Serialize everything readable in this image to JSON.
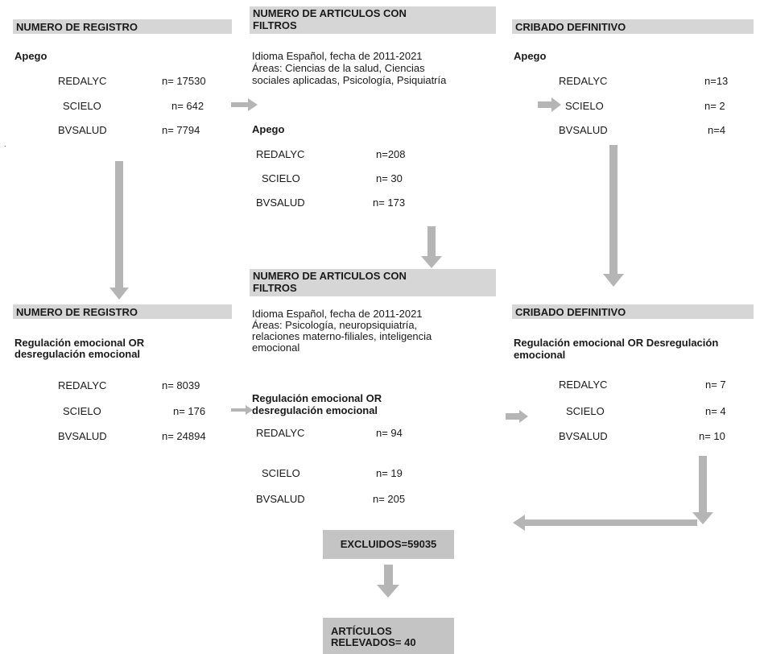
{
  "col1": {
    "block1": {
      "header": "NUMERO DE REGISTRO",
      "topic": "Apego",
      "rows": [
        {
          "db": "REDALYC",
          "n": "n= 17530"
        },
        {
          "db": "SCIELO",
          "n": "n= 642"
        },
        {
          "db": "BVSALUD",
          "n": "n= 7794"
        }
      ]
    },
    "block2": {
      "header": "NUMERO DE REGISTRO",
      "topic_line1": "Regulación emocional OR",
      "topic_line2": "desregulación emocional",
      "rows": [
        {
          "db": "REDALYC",
          "n": "n=  8039"
        },
        {
          "db": "SCIELO",
          "n": "n= 176"
        },
        {
          "db": "BVSALUD",
          "n": "n= 24894"
        }
      ]
    }
  },
  "col2": {
    "block1": {
      "header_line1": "NUMERO DE ARTICULOS CON",
      "header_line2": "FILTROS",
      "filter_line1": "Idioma Español, fecha de 2011-2021",
      "filter_line2": "Áreas: Ciencias de la salud, Ciencias",
      "filter_line3": "sociales aplicadas, Psicología, Psiquiatría",
      "topic": "Apego",
      "rows": [
        {
          "db": "REDALYC",
          "n": "n=208"
        },
        {
          "db": "SCIELO",
          "n": "n= 30"
        },
        {
          "db": "BVSALUD",
          "n": "n= 173"
        }
      ]
    },
    "block2": {
      "header_line1": "NUMERO DE ARTICULOS CON",
      "header_line2": "FILTROS",
      "filter_line1": "Idioma Español, fecha de 2011-2021",
      "filter_line2": "Áreas: Psicología, neuropsiquiatría,",
      "filter_line3": "relaciones materno-filiales, inteligencia",
      "filter_line4": "emocional",
      "topic_line1": "Regulación emocional OR",
      "topic_line2": "desregulación emocional",
      "rows": [
        {
          "db": "REDALYC",
          "n": "n= 94"
        },
        {
          "db": "SCIELO",
          "n": "n= 19"
        },
        {
          "db": "BVSALUD",
          "n": "n= 205"
        }
      ]
    }
  },
  "col3": {
    "block1": {
      "header": "CRIBADO DEFINITIVO",
      "topic": "Apego",
      "rows": [
        {
          "db": "REDALYC",
          "n": "n=13"
        },
        {
          "db": "SCIELO",
          "n": "n= 2"
        },
        {
          "db": "BVSALUD",
          "n": "n=4"
        }
      ]
    },
    "block2": {
      "header": "CRIBADO DEFINITIVO",
      "topic_line1": "Regulación emocional OR Desregulación",
      "topic_line2": "emocional",
      "rows": [
        {
          "db": "REDALYC",
          "n": "n= 7"
        },
        {
          "db": "SCIELO",
          "n": "n= 4"
        },
        {
          "db": "BVSALUD",
          "n": "n= 10"
        }
      ]
    }
  },
  "bottom": {
    "excluded": "EXCLUIDOS=59035",
    "relevados_line1": "ARTÍCULOS",
    "relevados_line2": "RELEVADOS= 40"
  },
  "colors": {
    "header_bg": "#d6d6d6",
    "arrow": "#b5b5b5",
    "box_bg": "#c4c4c4"
  }
}
